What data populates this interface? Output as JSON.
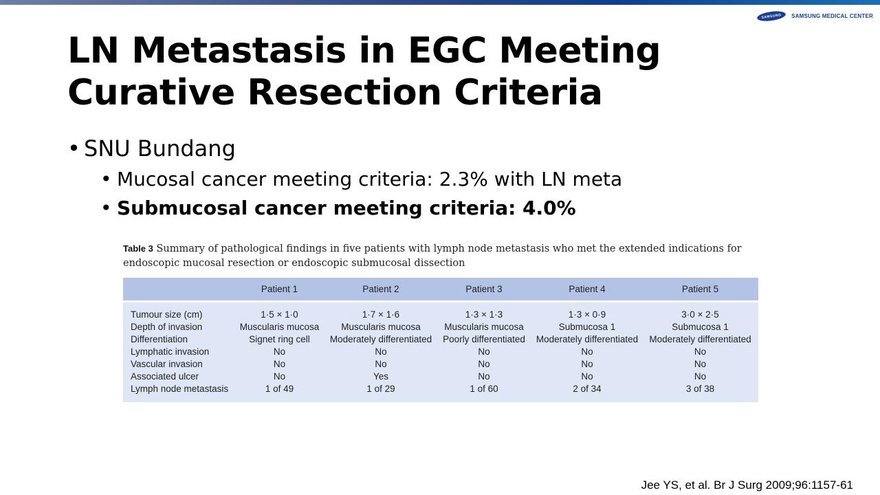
{
  "logo": {
    "mark_text": "SAMSUNG",
    "org_name": "SAMSUNG MEDICAL CENTER"
  },
  "slide": {
    "title_line1": "LN Metastasis in EGC Meeting",
    "title_line2": "Curative Resection Criteria"
  },
  "bullets": {
    "main": "SNU Bundang",
    "sub": [
      "Mucosal cancer meeting criteria: 2.3% with LN meta",
      "Submucosal cancer meeting criteria: 4.0%"
    ]
  },
  "table": {
    "label": "Table 3",
    "caption": "Summary of pathological findings in five patients with lymph node metastasis who met the extended indications for endoscopic mucosal resection or endoscopic submucosal dissection",
    "headers": [
      "",
      "Patient 1",
      "Patient 2",
      "Patient 3",
      "Patient 4",
      "Patient 5"
    ],
    "rows": [
      [
        "Tumour size (cm)",
        "1·5 × 1·0",
        "1·7 × 1·6",
        "1·3 × 1·3",
        "1·3 × 0·9",
        "3·0 × 2·5"
      ],
      [
        "Depth of invasion",
        "Muscularis mucosa",
        "Muscularis mucosa",
        "Muscularis mucosa",
        "Submucosa 1",
        "Submucosa 1"
      ],
      [
        "Differentiation",
        "Signet ring cell",
        "Moderately differentiated",
        "Poorly differentiated",
        "Moderately differentiated",
        "Moderately differentiated"
      ],
      [
        "Lymphatic invasion",
        "No",
        "No",
        "No",
        "No",
        "No"
      ],
      [
        "Vascular invasion",
        "No",
        "No",
        "No",
        "No",
        "No"
      ],
      [
        "Associated ulcer",
        "No",
        "Yes",
        "No",
        "No",
        "No"
      ],
      [
        "Lymph node metastasis",
        "1 of 49",
        "1 of 29",
        "1 of 60",
        "2 of 34",
        "3 of 38"
      ]
    ]
  },
  "citation": "Jee YS, et al. Br J Surg 2009;96:1157-61",
  "colors": {
    "table_header_bg": "#b3c3e6",
    "table_body_bg": "#dfe6f5",
    "brand_blue": "#1a3f8f"
  }
}
